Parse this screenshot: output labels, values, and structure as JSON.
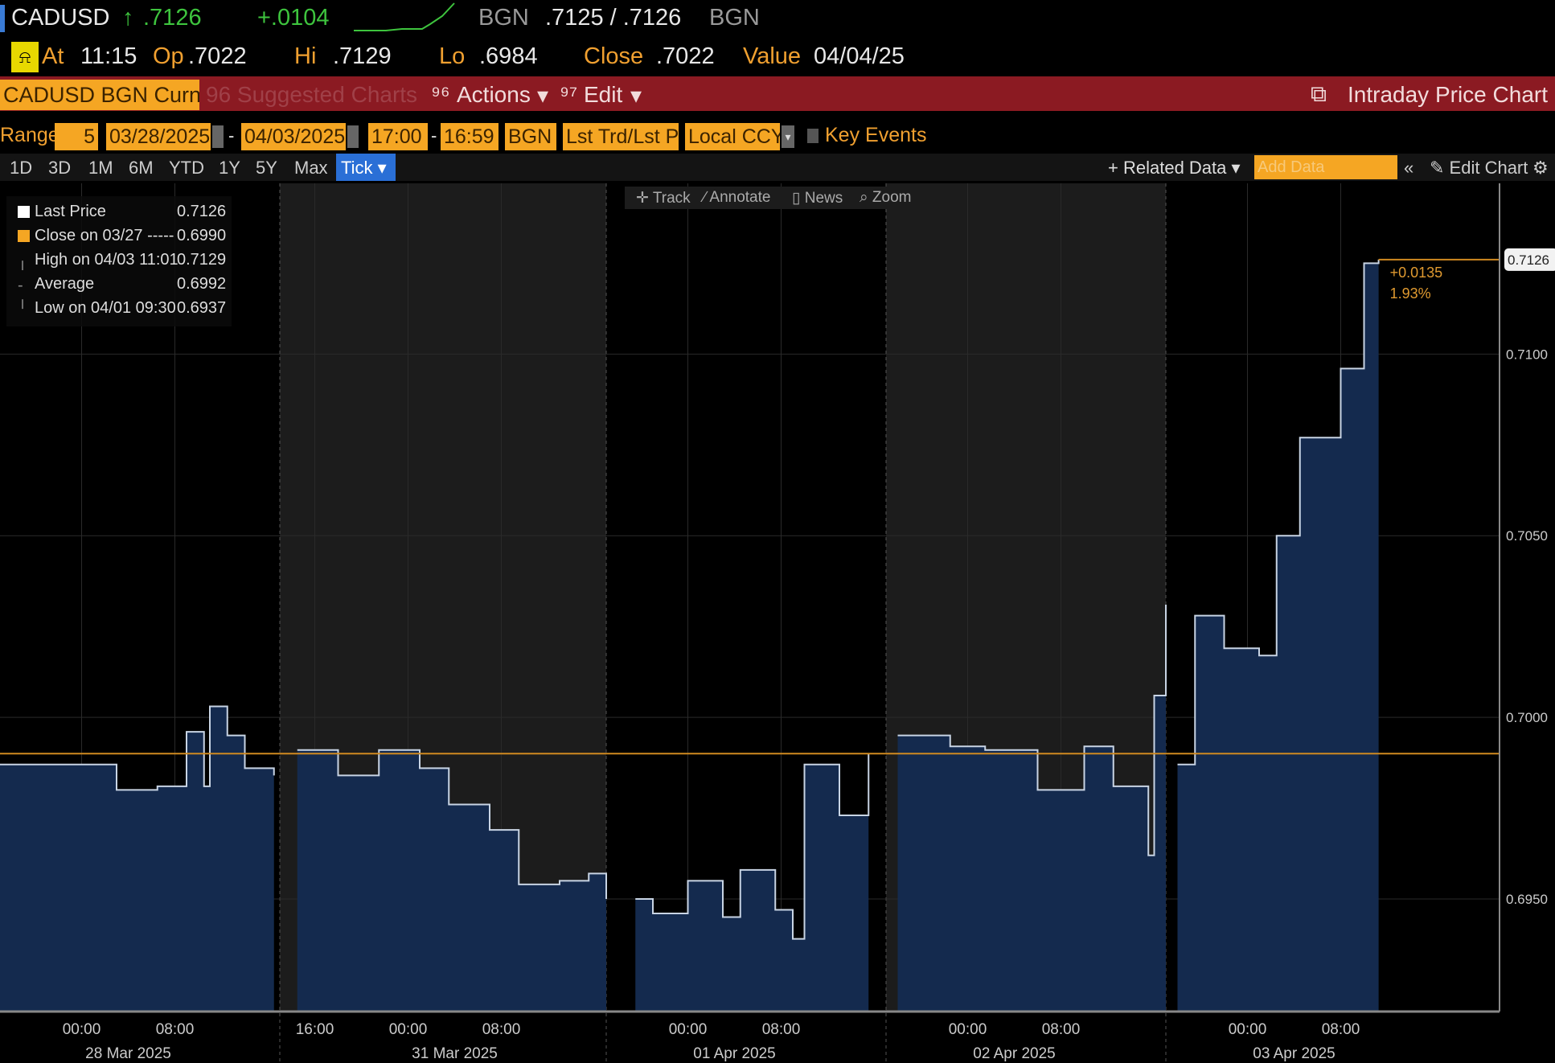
{
  "header": {
    "ticker": "CADUSD",
    "last": ".7126",
    "change": "+.0104",
    "source": "BGN",
    "bid_ask": ".7125 / .7126",
    "source2": "BGN",
    "at_label": "At",
    "time": "11:15",
    "op_label": "Op",
    "op": ".7022",
    "hi_label": "Hi",
    "hi": ".7129",
    "lo_label": "Lo",
    "lo": ".6984",
    "close_label": "Close",
    "close": ".7022",
    "value_label": "Value",
    "value": "04/04/25"
  },
  "menubar": {
    "security": "CADUSD BGN Curncy",
    "suggested": "96 Suggested Charts",
    "actions": "Actions",
    "edit": "Edit",
    "title": "Intraday Price Chart"
  },
  "range": {
    "label": "Range",
    "period": "5",
    "start": "03/28/2025",
    "end": "04/03/2025",
    "time_start": "17:00",
    "time_end": "16:59",
    "source": "BGN",
    "field": "Lst Trd/Lst P",
    "ccy": "Local CCY",
    "key_events": "Key Events"
  },
  "periods": [
    "1D",
    "3D",
    "1M",
    "6M",
    "YTD",
    "1Y",
    "5Y",
    "Max"
  ],
  "period_selected": "Tick",
  "toolbar": {
    "related": "Related Data",
    "add_data": "Add Data",
    "edit_chart": "Edit Chart",
    "track": "Track",
    "annotate": "Annotate",
    "news": "News",
    "zoom": "Zoom"
  },
  "legend": [
    {
      "label": "Last Price",
      "value": "0.7126",
      "color": "#ffffff"
    },
    {
      "label": "Close on 03/27 -----",
      "value": "0.6990",
      "color": "#f5a623"
    },
    {
      "label": "High on 04/03 11:01",
      "value": "0.7129"
    },
    {
      "label": "Average",
      "value": "0.6992"
    },
    {
      "label": "Low on 04/01 09:30",
      "value": "0.6937"
    }
  ],
  "chart_data": {
    "type": "area",
    "ylim": [
      0.6919,
      0.7147
    ],
    "yticks": [
      "0.6950",
      "0.7000",
      "0.7050",
      "0.7100"
    ],
    "last_label": "0.7126",
    "change_label": "+0.0135",
    "pct_label": "1.93%",
    "reference_line": 0.699,
    "sessions": [
      {
        "start": "03/27 17:00",
        "end": "03/28 17:00",
        "shaded": false
      },
      {
        "start": "03/30 13:00",
        "end": "03/31 17:00",
        "shaded": true
      },
      {
        "start": "03/31 17:00",
        "end": "04/01 17:00",
        "shaded": false
      },
      {
        "start": "04/01 17:00",
        "end": "04/02 17:00",
        "shaded": true
      },
      {
        "start": "04/02 17:00",
        "end": "04/04 01:40",
        "shaded": false
      }
    ],
    "xticks": [
      {
        "t": "03/28 00:00",
        "label": "00:00"
      },
      {
        "t": "03/28 08:00",
        "label": "08:00"
      },
      {
        "t": "03/30 16:00",
        "label": "16:00"
      },
      {
        "t": "03/31 00:00",
        "label": "00:00"
      },
      {
        "t": "03/31 08:00",
        "label": "08:00"
      },
      {
        "t": "04/01 00:00",
        "label": "00:00"
      },
      {
        "t": "04/01 08:00",
        "label": "08:00"
      },
      {
        "t": "04/02 00:00",
        "label": "00:00"
      },
      {
        "t": "04/02 08:00",
        "label": "08:00"
      },
      {
        "t": "04/03 00:00",
        "label": "00:00"
      },
      {
        "t": "04/03 08:00",
        "label": "08:00"
      }
    ],
    "date_labels": [
      {
        "t": "03/28 04:00",
        "label": "28 Mar 2025"
      },
      {
        "t": "03/31 04:00",
        "label": "31 Mar 2025"
      },
      {
        "t": "04/01 04:00",
        "label": "01 Apr 2025"
      },
      {
        "t": "04/02 04:00",
        "label": "02 Apr 2025"
      },
      {
        "t": "04/03 04:00",
        "label": "03 Apr 2025"
      }
    ],
    "points": [
      [
        "03/27 17:00",
        0.6987
      ],
      [
        "03/27 22:00",
        0.6987
      ],
      [
        "03/28 03:00",
        0.698
      ],
      [
        "03/28 06:30",
        0.6981
      ],
      [
        "03/28 09:00",
        0.6996
      ],
      [
        "03/28 10:30",
        0.6981
      ],
      [
        "03/28 11:00",
        0.7003
      ],
      [
        "03/28 12:30",
        0.6995
      ],
      [
        "03/28 14:00",
        0.6986
      ],
      [
        "03/28 16:30",
        0.6984
      ],
      [
        "03/30 14:30",
        0.6991
      ],
      [
        "03/30 18:00",
        0.6984
      ],
      [
        "03/30 21:30",
        0.6991
      ],
      [
        "03/31 01:00",
        0.6986
      ],
      [
        "03/31 03:30",
        0.6976
      ],
      [
        "03/31 07:00",
        0.6969
      ],
      [
        "03/31 09:30",
        0.6954
      ],
      [
        "03/31 13:00",
        0.6955
      ],
      [
        "03/31 15:30",
        0.6957
      ],
      [
        "03/31 17:00",
        0.695
      ],
      [
        "03/31 19:30",
        0.695
      ],
      [
        "03/31 21:00",
        0.6946
      ],
      [
        "04/01 00:00",
        0.6955
      ],
      [
        "04/01 03:00",
        0.6945
      ],
      [
        "04/01 04:30",
        0.6958
      ],
      [
        "04/01 07:30",
        0.6947
      ],
      [
        "04/01 09:00",
        0.6939
      ],
      [
        "04/01 10:00",
        0.6987
      ],
      [
        "04/01 13:00",
        0.6973
      ],
      [
        "04/01 15:30",
        0.699
      ],
      [
        "04/01 18:00",
        0.6995
      ],
      [
        "04/01 22:30",
        0.6992
      ],
      [
        "04/02 01:30",
        0.6991
      ],
      [
        "04/02 06:00",
        0.698
      ],
      [
        "04/02 08:30",
        0.698
      ],
      [
        "04/02 10:00",
        0.6992
      ],
      [
        "04/02 12:30",
        0.6981
      ],
      [
        "04/02 15:00",
        0.6981
      ],
      [
        "04/02 15:30",
        0.6962
      ],
      [
        "04/02 16:00",
        0.7006
      ],
      [
        "04/02 17:00",
        0.7031
      ],
      [
        "04/02 18:00",
        0.6987
      ],
      [
        "04/02 19:30",
        0.7028
      ],
      [
        "04/02 22:00",
        0.7019
      ],
      [
        "04/03 01:00",
        0.7017
      ],
      [
        "04/03 02:30",
        0.705
      ],
      [
        "04/03 04:30",
        0.7077
      ],
      [
        "04/03 06:30",
        0.7077
      ],
      [
        "04/03 08:00",
        0.7096
      ],
      [
        "04/03 10:00",
        0.7125
      ],
      [
        "04/03 11:15",
        0.7126
      ]
    ]
  }
}
